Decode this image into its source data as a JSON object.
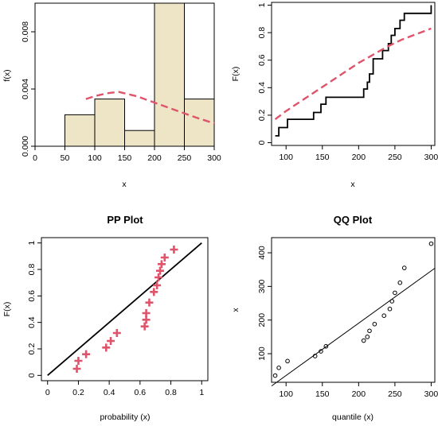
{
  "colors": {
    "bar_fill": "#EEE5C6",
    "bar_stroke": "#000000",
    "fit_curve": "#DF536B",
    "ecdf": "#000000",
    "pp_marker": "#DF536B",
    "reference_line": "#000000",
    "qq_point": "#000000"
  },
  "chart_data": [
    {
      "type": "bar",
      "subtype": "histogram",
      "title": "",
      "xlabel": "x",
      "ylabel": "f(x)",
      "xlim": [
        0,
        300
      ],
      "ylim": [
        0,
        0.01
      ],
      "xticks": [
        0,
        50,
        100,
        150,
        200,
        250,
        300
      ],
      "yticks": [
        0.0,
        0.004,
        0.008
      ],
      "ytick_labels": [
        "0.000",
        "0.004",
        "0.008"
      ],
      "bins": [
        {
          "from": 50,
          "to": 100,
          "density": 0.0022
        },
        {
          "from": 100,
          "to": 150,
          "density": 0.0033
        },
        {
          "from": 150,
          "to": 200,
          "density": 0.0011
        },
        {
          "from": 200,
          "to": 250,
          "density": 0.01
        },
        {
          "from": 250,
          "to": 300,
          "density": 0.0033
        }
      ],
      "fitted_density": {
        "style": "dashed",
        "x": [
          85,
          100,
          120,
          140,
          150,
          170,
          190,
          210,
          230,
          250,
          270,
          300
        ],
        "y": [
          0.0033,
          0.0035,
          0.0037,
          0.0038,
          0.0037,
          0.0035,
          0.0032,
          0.0029,
          0.0026,
          0.0023,
          0.002,
          0.0016
        ]
      }
    },
    {
      "type": "line",
      "title": "",
      "xlabel": "x",
      "ylabel": "F(x)",
      "xlim": [
        80,
        305
      ],
      "ylim": [
        -0.02,
        1.02
      ],
      "xticks": [
        100,
        150,
        200,
        250,
        300
      ],
      "yticks": [
        0.0,
        0.2,
        0.4,
        0.6,
        0.8,
        1.0
      ],
      "series": [
        {
          "style": "step",
          "x": [
            85,
            90,
            102,
            138,
            148,
            155,
            207,
            212,
            215,
            220,
            233,
            241,
            245,
            250,
            257,
            263,
            300
          ],
          "y": [
            0.05,
            0.11,
            0.17,
            0.22,
            0.28,
            0.33,
            0.39,
            0.44,
            0.5,
            0.61,
            0.67,
            0.72,
            0.78,
            0.83,
            0.89,
            0.94,
            1.0
          ]
        },
        {
          "style": "dashed",
          "x": [
            85,
            100,
            120,
            140,
            160,
            180,
            200,
            220,
            240,
            260,
            280,
            300
          ],
          "y": [
            0.17,
            0.23,
            0.3,
            0.37,
            0.44,
            0.51,
            0.58,
            0.64,
            0.7,
            0.75,
            0.79,
            0.83
          ]
        }
      ]
    },
    {
      "type": "scatter",
      "title": "PP Plot",
      "xlabel": "probability (x)",
      "ylabel": "F(x)",
      "xlim": [
        -0.04,
        1.04
      ],
      "ylim": [
        -0.04,
        1.04
      ],
      "xticks": [
        0.0,
        0.2,
        0.4,
        0.6,
        0.8,
        1.0
      ],
      "yticks": [
        0.0,
        0.2,
        0.4,
        0.6,
        0.8,
        1.0
      ],
      "marker": "plus",
      "points": [
        {
          "x": 0.19,
          "y": 0.05
        },
        {
          "x": 0.2,
          "y": 0.11
        },
        {
          "x": 0.25,
          "y": 0.16
        },
        {
          "x": 0.38,
          "y": 0.21
        },
        {
          "x": 0.41,
          "y": 0.26
        },
        {
          "x": 0.45,
          "y": 0.32
        },
        {
          "x": 0.63,
          "y": 0.37
        },
        {
          "x": 0.64,
          "y": 0.42
        },
        {
          "x": 0.64,
          "y": 0.47
        },
        {
          "x": 0.66,
          "y": 0.55
        },
        {
          "x": 0.69,
          "y": 0.63
        },
        {
          "x": 0.71,
          "y": 0.68
        },
        {
          "x": 0.72,
          "y": 0.74
        },
        {
          "x": 0.73,
          "y": 0.79
        },
        {
          "x": 0.74,
          "y": 0.84
        },
        {
          "x": 0.76,
          "y": 0.89
        },
        {
          "x": 0.82,
          "y": 0.95
        }
      ],
      "reference_line": {
        "x": [
          0,
          1
        ],
        "y": [
          0,
          1
        ]
      }
    },
    {
      "type": "scatter",
      "title": "QQ Plot",
      "xlabel": "quantile (x)",
      "ylabel": "x",
      "xlim": [
        80,
        305
      ],
      "ylim": [
        15,
        445
      ],
      "xticks": [
        100,
        150,
        200,
        250,
        300
      ],
      "yticks": [
        100,
        200,
        300,
        400
      ],
      "marker": "circle",
      "points": [
        {
          "x": 85,
          "y": 35
        },
        {
          "x": 90,
          "y": 58
        },
        {
          "x": 102,
          "y": 78
        },
        {
          "x": 140,
          "y": 93
        },
        {
          "x": 148,
          "y": 107
        },
        {
          "x": 155,
          "y": 122
        },
        {
          "x": 207,
          "y": 139
        },
        {
          "x": 212,
          "y": 150
        },
        {
          "x": 215,
          "y": 168
        },
        {
          "x": 222,
          "y": 188
        },
        {
          "x": 235,
          "y": 213
        },
        {
          "x": 243,
          "y": 233
        },
        {
          "x": 246,
          "y": 256
        },
        {
          "x": 250,
          "y": 281
        },
        {
          "x": 257,
          "y": 311
        },
        {
          "x": 263,
          "y": 355
        },
        {
          "x": 300,
          "y": 427
        }
      ],
      "reference_line": {
        "x": [
          80,
          305
        ],
        "y": [
          4,
          354
        ]
      }
    }
  ]
}
